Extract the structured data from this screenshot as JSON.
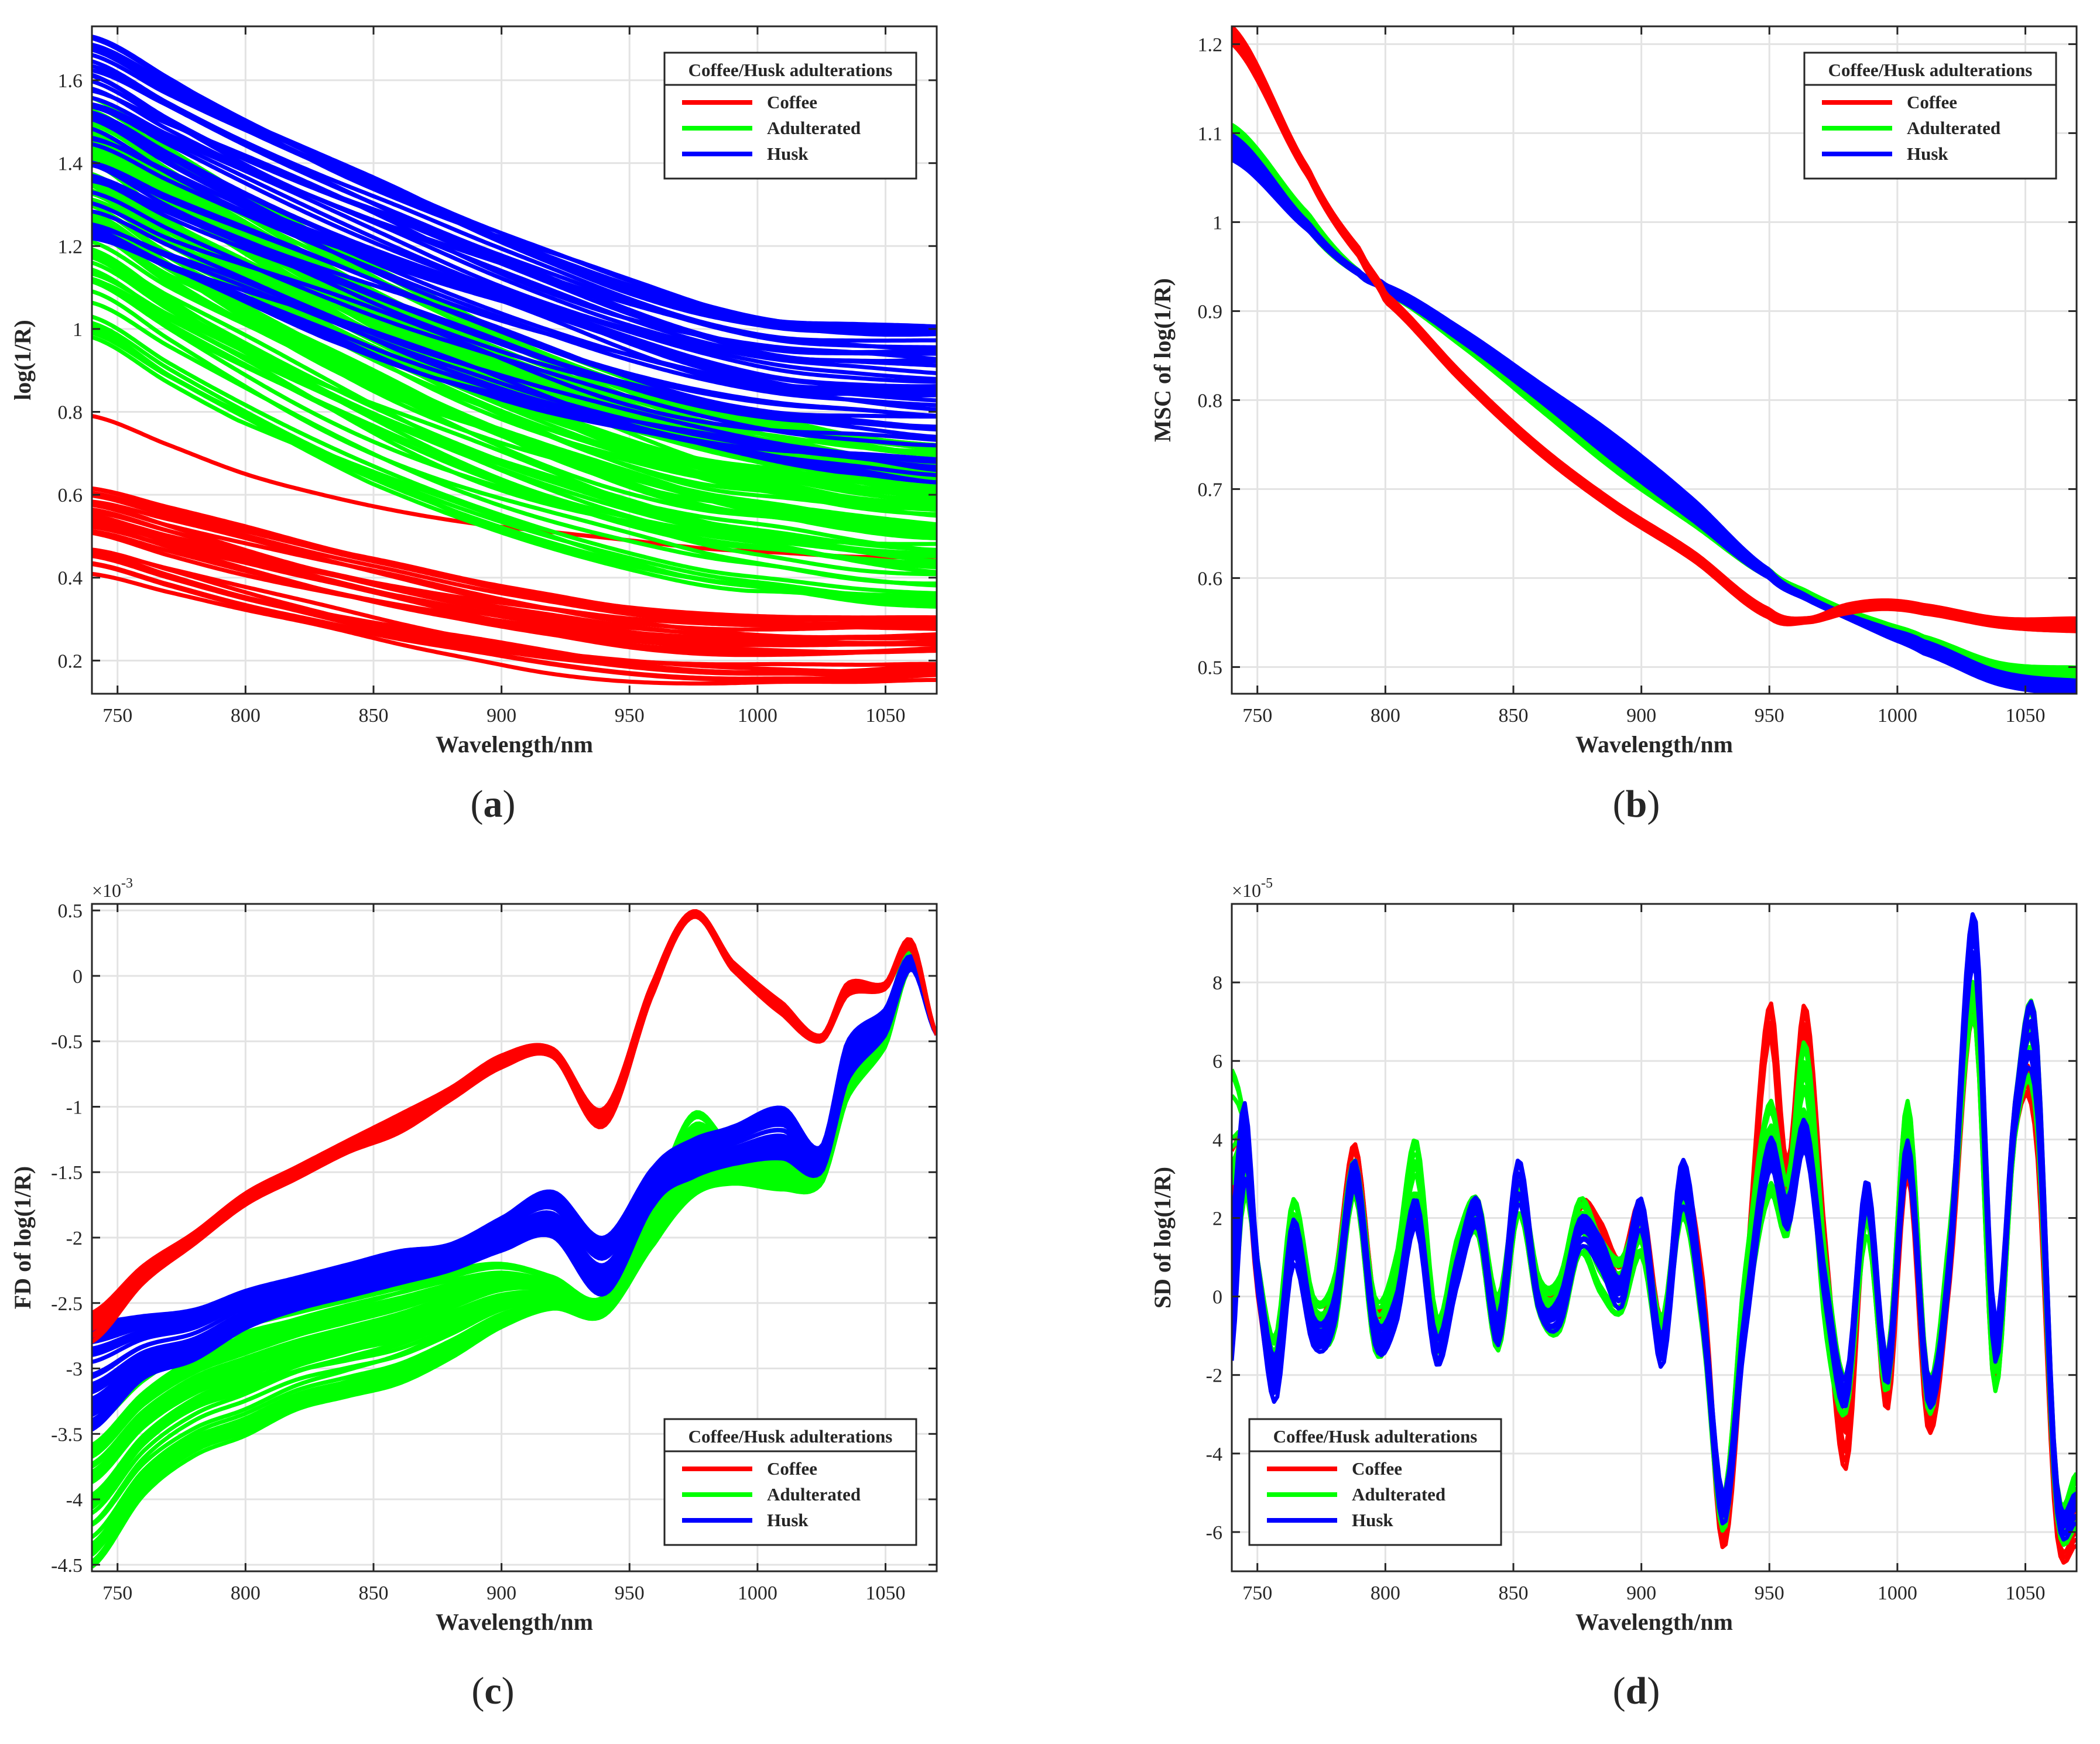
{
  "colors": {
    "coffee": "#ff0000",
    "adulterated": "#00ff00",
    "husk": "#0000ff",
    "grid": "#e3e3e3",
    "axis": "#262626"
  },
  "chart_data": [
    {
      "id": "a",
      "panel_label": "a",
      "type": "line",
      "title": "",
      "xlabel": "Wavelength/nm",
      "ylabel": "log(1/R)",
      "xlim": [
        740,
        1070
      ],
      "ylim": [
        0.12,
        1.73
      ],
      "xticks": [
        750,
        800,
        850,
        900,
        950,
        1000,
        1050
      ],
      "yticks": [
        0.2,
        0.4,
        0.6,
        0.8,
        1,
        1.2,
        1.4,
        1.6
      ],
      "ytick_labels": [
        "0.2",
        "0.4",
        "0.6",
        "0.8",
        "1",
        "1.2",
        "1.4",
        "1.6"
      ],
      "exponent": "",
      "grid": true,
      "legend": {
        "title": "Coffee/Husk adulterations",
        "position": "top-right",
        "entries": [
          "Coffee",
          "Adulterated",
          "Husk"
        ]
      },
      "x": [
        740,
        770,
        800,
        830,
        860,
        890,
        920,
        950,
        980,
        1010,
        1040,
        1070
      ],
      "series": [
        {
          "name": "Coffee",
          "color": "#ff0000",
          "n": 30,
          "min": [
            0.4,
            0.35,
            0.3,
            0.26,
            0.22,
            0.19,
            0.16,
            0.14,
            0.13,
            0.13,
            0.13,
            0.14
          ],
          "max": [
            0.63,
            0.58,
            0.53,
            0.48,
            0.44,
            0.4,
            0.37,
            0.34,
            0.32,
            0.31,
            0.31,
            0.31
          ]
        },
        {
          "name": "Coffee (outlier)",
          "color": "#ff0000",
          "n": 1,
          "min": [
            0.79,
            0.72,
            0.65,
            0.6,
            0.56,
            0.53,
            0.51,
            0.49,
            0.47,
            0.46,
            0.45,
            0.45
          ],
          "max": [
            0.79,
            0.72,
            0.65,
            0.6,
            0.56,
            0.53,
            0.51,
            0.49,
            0.47,
            0.46,
            0.45,
            0.45
          ]
        },
        {
          "name": "Adulterated",
          "color": "#00ff00",
          "n": 90,
          "min": [
            0.98,
            0.87,
            0.77,
            0.68,
            0.6,
            0.53,
            0.47,
            0.42,
            0.38,
            0.36,
            0.34,
            0.33
          ],
          "max": [
            1.56,
            1.44,
            1.33,
            1.22,
            1.12,
            1.03,
            0.95,
            0.88,
            0.82,
            0.78,
            0.74,
            0.72
          ]
        },
        {
          "name": "Husk",
          "color": "#0000ff",
          "n": 45,
          "min": [
            1.2,
            1.12,
            1.05,
            0.98,
            0.91,
            0.85,
            0.79,
            0.74,
            0.7,
            0.67,
            0.65,
            0.63
          ],
          "max": [
            1.72,
            1.62,
            1.52,
            1.43,
            1.35,
            1.27,
            1.2,
            1.13,
            1.07,
            1.03,
            1.02,
            1.02
          ]
        }
      ]
    },
    {
      "id": "b",
      "panel_label": "b",
      "type": "line",
      "title": "",
      "xlabel": "Wavelength/nm",
      "ylabel": "MSC of log(1/R)",
      "xlim": [
        740,
        1070
      ],
      "ylim": [
        0.47,
        1.22
      ],
      "xticks": [
        750,
        800,
        850,
        900,
        950,
        1000,
        1050
      ],
      "yticks": [
        0.5,
        0.6,
        0.7,
        0.8,
        0.9,
        1,
        1.1,
        1.2
      ],
      "ytick_labels": [
        "0.5",
        "0.6",
        "0.7",
        "0.8",
        "0.9",
        "1",
        "1.1",
        "1.2"
      ],
      "exponent": "",
      "grid": true,
      "legend": {
        "title": "Coffee/Husk adulterations",
        "position": "top-right",
        "entries": [
          "Coffee",
          "Adulterated",
          "Husk"
        ]
      },
      "x": [
        740,
        770,
        790,
        800,
        830,
        860,
        890,
        920,
        950,
        965,
        980,
        995,
        1010,
        1040,
        1070
      ],
      "series": [
        {
          "name": "Adulterated",
          "color": "#00ff00",
          "n": 30,
          "min": [
            1.09,
            0.99,
            0.94,
            0.92,
            0.86,
            0.79,
            0.72,
            0.66,
            0.6,
            0.575,
            0.555,
            0.54,
            0.525,
            0.495,
            0.485
          ],
          "max": [
            1.11,
            1.01,
            0.945,
            0.925,
            0.87,
            0.81,
            0.74,
            0.675,
            0.61,
            0.585,
            0.565,
            0.55,
            0.535,
            0.505,
            0.5
          ]
        },
        {
          "name": "Husk",
          "color": "#0000ff",
          "n": 30,
          "min": [
            1.07,
            0.99,
            0.94,
            0.92,
            0.865,
            0.8,
            0.73,
            0.665,
            0.6,
            0.575,
            0.555,
            0.535,
            0.515,
            0.48,
            0.47
          ],
          "max": [
            1.1,
            1.0,
            0.945,
            0.93,
            0.88,
            0.82,
            0.76,
            0.69,
            0.61,
            0.58,
            0.56,
            0.545,
            0.53,
            0.495,
            0.485
          ]
        },
        {
          "name": "Coffee",
          "color": "#ff0000",
          "n": 20,
          "min": [
            1.2,
            1.05,
            0.96,
            0.91,
            0.82,
            0.74,
            0.675,
            0.62,
            0.555,
            0.55,
            0.56,
            0.565,
            0.56,
            0.545,
            0.54
          ],
          "max": [
            1.22,
            1.06,
            0.97,
            0.92,
            0.83,
            0.75,
            0.685,
            0.63,
            0.565,
            0.555,
            0.57,
            0.575,
            0.57,
            0.555,
            0.555
          ]
        }
      ]
    },
    {
      "id": "c",
      "panel_label": "c",
      "type": "line",
      "title": "",
      "xlabel": "Wavelength/nm",
      "ylabel": "FD of log(1/R)",
      "xlim": [
        740,
        1070
      ],
      "ylim": [
        -4.55,
        0.55
      ],
      "xticks": [
        750,
        800,
        850,
        900,
        950,
        1000,
        1050
      ],
      "yticks": [
        -4.5,
        -4,
        -3.5,
        -3,
        -2.5,
        -2,
        -1.5,
        -1,
        -0.5,
        0,
        0.5
      ],
      "ytick_labels": [
        "-4.5",
        "-4",
        "-3.5",
        "-3",
        "-2.5",
        "-2",
        "-1.5",
        "-1",
        "-0.5",
        "0",
        "0.5"
      ],
      "exponent": "×10",
      "exponent_power": "-3",
      "grid": true,
      "legend": {
        "title": "Coffee/Husk adulterations",
        "position": "bottom-right",
        "entries": [
          "Coffee",
          "Adulterated",
          "Husk"
        ]
      },
      "x": [
        740,
        760,
        780,
        800,
        820,
        840,
        860,
        880,
        900,
        920,
        940,
        960,
        975,
        990,
        1010,
        1025,
        1035,
        1050,
        1060,
        1070
      ],
      "series": [
        {
          "name": "Adulterated",
          "color": "#00ff00",
          "n": 50,
          "min": [
            -4.55,
            -4.0,
            -3.7,
            -3.55,
            -3.35,
            -3.25,
            -3.15,
            -2.95,
            -2.7,
            -2.55,
            -2.6,
            -2.05,
            -1.7,
            -1.6,
            -1.65,
            -1.6,
            -0.95,
            -0.55,
            0.05,
            -0.45
          ],
          "max": [
            -3.4,
            -3.05,
            -2.8,
            -2.65,
            -2.55,
            -2.45,
            -2.35,
            -2.25,
            -2.2,
            -2.3,
            -2.45,
            -1.7,
            -1.05,
            -1.3,
            -1.25,
            -1.35,
            -0.65,
            -0.3,
            0.2,
            -0.45
          ]
        },
        {
          "name": "Husk",
          "color": "#0000ff",
          "n": 40,
          "min": [
            -3.5,
            -3.1,
            -2.95,
            -2.7,
            -2.55,
            -2.45,
            -2.35,
            -2.25,
            -2.1,
            -2.0,
            -2.45,
            -1.75,
            -1.55,
            -1.45,
            -1.4,
            -1.5,
            -0.8,
            -0.45,
            0.05,
            -0.45
          ],
          "max": [
            -2.65,
            -2.6,
            -2.55,
            -2.4,
            -2.3,
            -2.2,
            -2.1,
            -2.05,
            -1.85,
            -1.65,
            -2.0,
            -1.45,
            -1.25,
            -1.15,
            -1.0,
            -1.3,
            -0.5,
            -0.25,
            0.15,
            -0.45
          ]
        },
        {
          "name": "Coffee",
          "color": "#ff0000",
          "n": 20,
          "min": [
            -2.8,
            -2.35,
            -2.05,
            -1.75,
            -1.55,
            -1.35,
            -1.2,
            -0.95,
            -0.7,
            -0.62,
            -1.15,
            -0.1,
            0.45,
            0.05,
            -0.3,
            -0.5,
            -0.15,
            -0.1,
            0.2,
            -0.45
          ],
          "max": [
            -2.55,
            -2.2,
            -1.95,
            -1.65,
            -1.45,
            -1.25,
            -1.05,
            -0.85,
            -0.6,
            -0.55,
            -1.0,
            0.0,
            0.5,
            0.12,
            -0.2,
            -0.45,
            -0.05,
            -0.05,
            0.28,
            -0.45
          ]
        }
      ]
    },
    {
      "id": "d",
      "panel_label": "d",
      "type": "line",
      "title": "",
      "xlabel": "Wavelength/nm",
      "ylabel": "SD of log(1/R)",
      "xlim": [
        740,
        1070
      ],
      "ylim": [
        -7,
        10
      ],
      "xticks": [
        750,
        800,
        850,
        900,
        950,
        1000,
        1050
      ],
      "yticks": [
        -6,
        -4,
        -2,
        0,
        2,
        4,
        6,
        8
      ],
      "ytick_labels": [
        "-6",
        "-4",
        "-2",
        "0",
        "2",
        "4",
        "6",
        "8"
      ],
      "exponent": "×10",
      "exponent_power": "-5",
      "grid": true,
      "legend": {
        "title": "Coffee/Husk adulterations",
        "position": "bottom-left",
        "entries": [
          "Coffee",
          "Adulterated",
          "Husk"
        ]
      },
      "x": [
        740,
        745,
        750,
        757,
        764,
        772,
        780,
        788,
        796,
        804,
        812,
        820,
        828,
        836,
        844,
        852,
        860,
        868,
        876,
        884,
        892,
        900,
        908,
        916,
        924,
        932,
        940,
        950,
        957,
        964,
        972,
        980,
        988,
        996,
        1004,
        1012,
        1020,
        1030,
        1038,
        1046,
        1054,
        1062,
        1070
      ],
      "series": [
        {
          "name": "Coffee",
          "color": "#ff0000",
          "n": 10,
          "min": [
            -1.0,
            3.0,
            0.0,
            -2.5,
            1.0,
            -1.0,
            -0.5,
            3.0,
            -1.0,
            -0.5,
            2.0,
            -1.5,
            0.5,
            2.0,
            -1.0,
            2.5,
            0.0,
            -0.5,
            1.5,
            1.0,
            0.0,
            1.5,
            -1.5,
            2.5,
            -0.5,
            -6.5,
            -1.0,
            6.5,
            2.0,
            6.5,
            0.0,
            -4.5,
            2.0,
            -3.0,
            3.0,
            -3.5,
            0.0,
            7.0,
            -2.5,
            4.0,
            4.0,
            -6.0,
            -6.5
          ],
          "max": [
            4.0,
            4.2,
            1.0,
            -1.5,
            2.0,
            -0.5,
            0.5,
            4.0,
            0.0,
            0.5,
            2.5,
            -0.5,
            1.5,
            2.5,
            0.0,
            3.0,
            0.5,
            0.5,
            2.5,
            2.0,
            1.0,
            2.5,
            -0.5,
            3.0,
            0.5,
            -5.5,
            0.0,
            7.5,
            3.5,
            7.5,
            1.5,
            -3.0,
            3.0,
            -2.0,
            4.0,
            -2.5,
            1.0,
            8.0,
            -1.0,
            5.0,
            5.0,
            -5.0,
            -5.0
          ]
        },
        {
          "name": "Adulterated",
          "color": "#00ff00",
          "n": 15,
          "min": [
            -1.0,
            2.5,
            0.5,
            -2.5,
            1.0,
            -1.0,
            -1.0,
            2.5,
            -1.5,
            -0.5,
            2.5,
            -1.5,
            0.5,
            1.5,
            -1.5,
            2.0,
            -0.5,
            -1.0,
            1.0,
            0.0,
            -0.5,
            1.0,
            -1.5,
            2.0,
            -1.0,
            -6.0,
            -1.0,
            2.5,
            1.5,
            4.5,
            -1.0,
            -3.0,
            1.5,
            -2.5,
            3.5,
            -3.0,
            0.5,
            7.0,
            -2.5,
            4.0,
            4.5,
            -5.5,
            -6.0
          ],
          "max": [
            6.0,
            4.5,
            1.0,
            -1.0,
            2.5,
            0.0,
            0.5,
            3.5,
            0.0,
            1.0,
            4.0,
            -0.5,
            1.5,
            2.5,
            0.0,
            3.0,
            0.5,
            0.5,
            2.5,
            1.5,
            1.0,
            2.0,
            -0.5,
            3.0,
            0.0,
            -5.0,
            0.5,
            5.0,
            3.0,
            6.5,
            1.0,
            -2.0,
            2.5,
            -1.5,
            5.0,
            -2.0,
            1.5,
            8.0,
            -1.0,
            5.0,
            7.0,
            -4.5,
            -4.5
          ]
        },
        {
          "name": "Husk",
          "color": "#0000ff",
          "n": 15,
          "min": [
            -2.5,
            2.5,
            0.0,
            -3.0,
            0.5,
            -1.5,
            -1.0,
            2.5,
            -1.5,
            -1.0,
            1.5,
            -2.0,
            0.0,
            1.5,
            -1.5,
            2.0,
            -0.5,
            -1.0,
            1.0,
            0.5,
            -0.5,
            1.5,
            -2.0,
            2.0,
            -1.0,
            -6.0,
            -1.5,
            3.0,
            1.5,
            3.5,
            -0.5,
            -3.0,
            2.0,
            -2.5,
            3.0,
            -3.0,
            0.0,
            8.0,
            -2.0,
            4.0,
            4.5,
            -5.5,
            -6.0
          ],
          "max": [
            2.0,
            5.0,
            1.0,
            -1.5,
            2.0,
            -0.5,
            0.0,
            3.5,
            -0.5,
            0.0,
            2.5,
            -1.0,
            1.0,
            2.5,
            -0.5,
            3.5,
            0.0,
            0.0,
            2.0,
            1.5,
            0.5,
            2.5,
            -1.0,
            3.5,
            0.0,
            -5.0,
            -0.5,
            4.0,
            2.5,
            4.5,
            0.5,
            -2.0,
            3.0,
            -1.5,
            4.0,
            -2.0,
            1.0,
            9.8,
            -0.5,
            5.0,
            7.0,
            -4.5,
            -5.0
          ]
        }
      ]
    }
  ]
}
